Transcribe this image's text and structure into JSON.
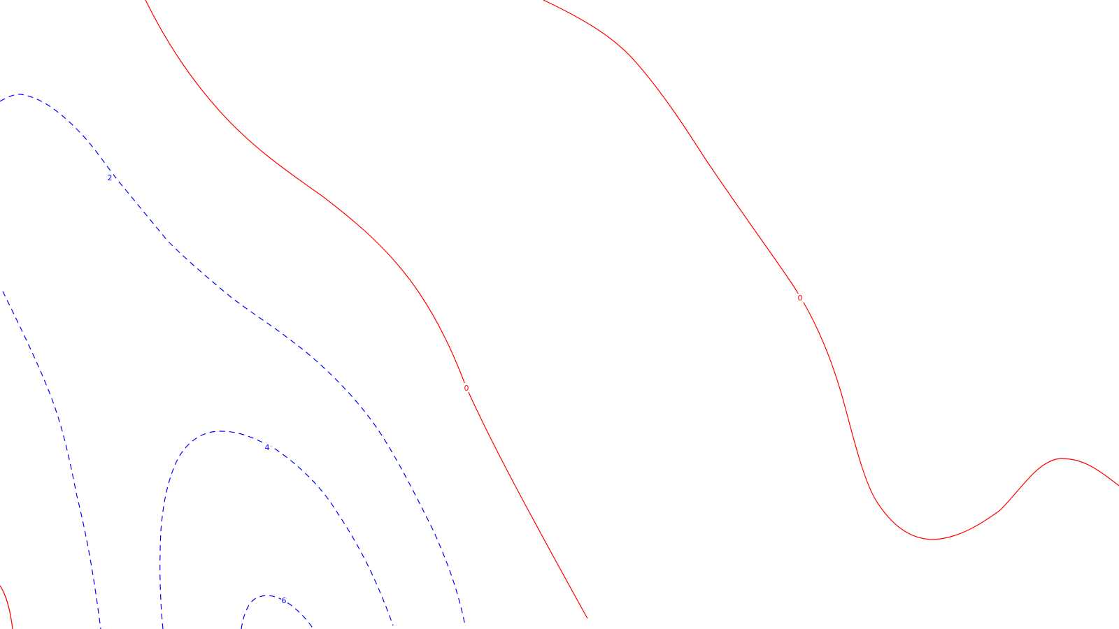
{
  "colors": {
    "background": "#ffffff",
    "zero_contour": "#ff0000",
    "positive_contour": "#0000ff"
  },
  "contours": [
    {
      "id": "zero-left",
      "level": 0,
      "style": "solid",
      "color": "#ff0000"
    },
    {
      "id": "zero-right",
      "level": 0,
      "style": "solid",
      "color": "#ff0000"
    },
    {
      "id": "zero-bottom-left",
      "level": 0,
      "style": "solid",
      "color": "#ff0000"
    },
    {
      "id": "two-upper",
      "level": 2,
      "style": "dashed",
      "color": "#0000ff"
    },
    {
      "id": "two-lower-left",
      "level": 2,
      "style": "dashed",
      "color": "#0000ff"
    },
    {
      "id": "four",
      "level": 4,
      "style": "dashed",
      "color": "#0000ff"
    },
    {
      "id": "six",
      "level": 6,
      "style": "dashed",
      "color": "#0000ff"
    }
  ],
  "labels": {
    "zero_left": "0",
    "zero_right": "0",
    "two_upper": "2",
    "four": "4",
    "six": "6"
  }
}
